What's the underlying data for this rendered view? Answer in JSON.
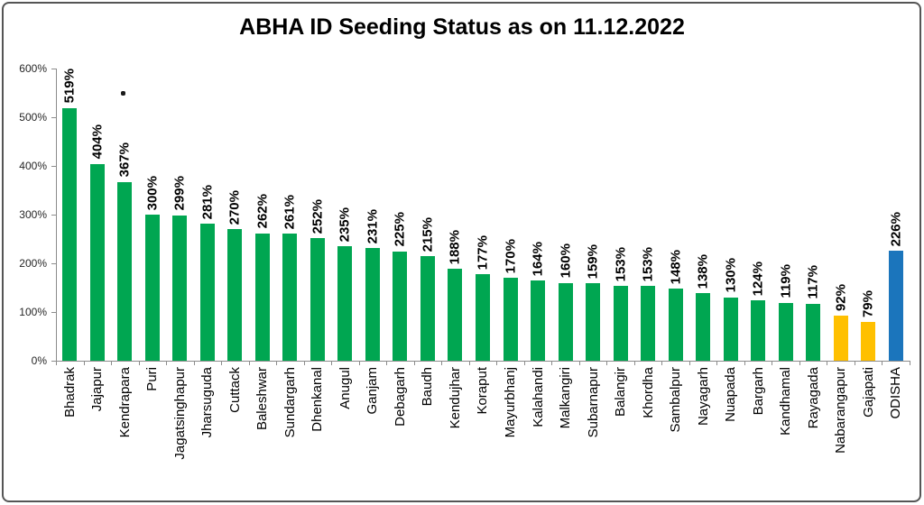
{
  "chart_data": {
    "type": "bar",
    "title": "ABHA ID Seeding Status as on 11.12.2022",
    "xlabel": "",
    "ylabel": "",
    "ylim": [
      0,
      600
    ],
    "ytick_step": 100,
    "ytick_labels": [
      "0%",
      "100%",
      "200%",
      "300%",
      "400%",
      "500%",
      "600%"
    ],
    "grid": false,
    "legend": "none",
    "categories": [
      "Bhadrak",
      "Jajapur",
      "Kendrapara",
      "Puri",
      "Jagatsinghapur",
      "Jharsuguda",
      "Cuttack",
      "Baleshwar",
      "Sundargarh",
      "Dhenkanal",
      "Anugul",
      "Ganjam",
      "Debagarh",
      "Baudh",
      "Kendujhar",
      "Koraput",
      "Mayurbhanj",
      "Kalahandi",
      "Malkangiri",
      "Subarnapur",
      "Balangir",
      "Khordha",
      "Sambalpur",
      "Nayagarh",
      "Nuapada",
      "Bargarh",
      "Kandhamal",
      "Rayagada",
      "Nabarangapur",
      "Gajapati",
      "ODISHA"
    ],
    "values": [
      519,
      404,
      367,
      300,
      299,
      281,
      270,
      262,
      261,
      252,
      235,
      231,
      225,
      215,
      188,
      177,
      170,
      164,
      160,
      159,
      153,
      153,
      148,
      138,
      130,
      124,
      119,
      117,
      92,
      79,
      226
    ],
    "value_labels": [
      "519%",
      "404%",
      "367%",
      "300%",
      "299%",
      "281%",
      "270%",
      "262%",
      "261%",
      "252%",
      "235%",
      "231%",
      "225%",
      "215%",
      "188%",
      "177%",
      "170%",
      "164%",
      "160%",
      "159%",
      "153%",
      "153%",
      "148%",
      "138%",
      "130%",
      "124%",
      "119%",
      "117%",
      "92%",
      "79%",
      "226%"
    ],
    "bar_colors": [
      "#00A651",
      "#00A651",
      "#00A651",
      "#00A651",
      "#00A651",
      "#00A651",
      "#00A651",
      "#00A651",
      "#00A651",
      "#00A651",
      "#00A651",
      "#00A651",
      "#00A651",
      "#00A651",
      "#00A651",
      "#00A651",
      "#00A651",
      "#00A651",
      "#00A651",
      "#00A651",
      "#00A651",
      "#00A651",
      "#00A651",
      "#00A651",
      "#00A651",
      "#00A651",
      "#00A651",
      "#00A651",
      "#FFC000",
      "#FFC000",
      "#1B75BC"
    ],
    "color_meaning": {
      "green": "#00A651",
      "yellow_low_performers": "#FFC000",
      "state_total_blue": "#1B75BC"
    }
  }
}
